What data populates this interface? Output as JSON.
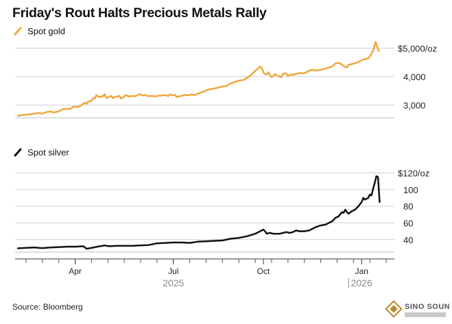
{
  "title": "Friday's Rout Halts Precious Metals Rally",
  "source": "Source: Bloomberg",
  "logo_text": "SINO SOUND",
  "chart_data": [
    {
      "type": "line",
      "name": "gold",
      "legend": "Spot gold",
      "color": "#f0a63c",
      "ylim": [
        2550,
        5200
      ],
      "yticks": [
        {
          "value": 5000,
          "label": "$5,000/oz"
        },
        {
          "value": 4000,
          "label": "4,000"
        },
        {
          "value": 3000,
          "label": "3,000"
        }
      ],
      "points": [
        [
          0,
          2625
        ],
        [
          0.3,
          2650
        ],
        [
          0.6,
          2660
        ],
        [
          0.8,
          2680
        ],
        [
          1.0,
          2700
        ],
        [
          1.3,
          2720
        ],
        [
          1.5,
          2700
        ],
        [
          1.8,
          2760
        ],
        [
          2.0,
          2770
        ],
        [
          2.2,
          2740
        ],
        [
          2.5,
          2780
        ],
        [
          2.8,
          2860
        ],
        [
          3.0,
          2870
        ],
        [
          3.2,
          2860
        ],
        [
          3.4,
          2940
        ],
        [
          3.6,
          2930
        ],
        [
          3.8,
          2960
        ],
        [
          4.0,
          3050
        ],
        [
          4.1,
          3080
        ],
        [
          4.2,
          3040
        ],
        [
          4.3,
          3120
        ],
        [
          4.5,
          3150
        ],
        [
          4.6,
          3240
        ],
        [
          4.7,
          3230
        ],
        [
          4.8,
          3350
        ],
        [
          4.9,
          3300
        ],
        [
          5.0,
          3270
        ],
        [
          5.1,
          3310
        ],
        [
          5.2,
          3300
        ],
        [
          5.3,
          3380
        ],
        [
          5.4,
          3250
        ],
        [
          5.5,
          3270
        ],
        [
          5.7,
          3320
        ],
        [
          5.8,
          3240
        ],
        [
          5.9,
          3280
        ],
        [
          6.0,
          3290
        ],
        [
          6.2,
          3320
        ],
        [
          6.3,
          3230
        ],
        [
          6.4,
          3260
        ],
        [
          6.6,
          3350
        ],
        [
          6.8,
          3300
        ],
        [
          7.0,
          3320
        ],
        [
          7.2,
          3310
        ],
        [
          7.4,
          3380
        ],
        [
          7.6,
          3340
        ],
        [
          7.8,
          3350
        ],
        [
          8.0,
          3310
        ],
        [
          8.2,
          3320
        ],
        [
          8.4,
          3300
        ],
        [
          8.6,
          3330
        ],
        [
          8.8,
          3340
        ],
        [
          9.0,
          3350
        ],
        [
          9.2,
          3320
        ],
        [
          9.3,
          3380
        ],
        [
          9.4,
          3340
        ],
        [
          9.6,
          3360
        ],
        [
          9.7,
          3280
        ],
        [
          9.8,
          3300
        ],
        [
          10.0,
          3320
        ],
        [
          10.2,
          3360
        ],
        [
          10.4,
          3340
        ],
        [
          10.6,
          3370
        ],
        [
          10.8,
          3350
        ],
        [
          11.0,
          3400
        ],
        [
          11.2,
          3440
        ],
        [
          11.4,
          3480
        ],
        [
          11.6,
          3540
        ],
        [
          11.8,
          3560
        ],
        [
          12.0,
          3580
        ],
        [
          12.2,
          3610
        ],
        [
          12.4,
          3640
        ],
        [
          12.6,
          3660
        ],
        [
          12.8,
          3680
        ],
        [
          13.0,
          3760
        ],
        [
          13.2,
          3800
        ],
        [
          13.4,
          3840
        ],
        [
          13.6,
          3870
        ],
        [
          13.8,
          3880
        ],
        [
          14.0,
          3960
        ],
        [
          14.2,
          4030
        ],
        [
          14.4,
          4150
        ],
        [
          14.6,
          4250
        ],
        [
          14.7,
          4300
        ],
        [
          14.8,
          4360
        ],
        [
          14.9,
          4300
        ],
        [
          15.0,
          4150
        ],
        [
          15.1,
          4090
        ],
        [
          15.2,
          4070
        ],
        [
          15.3,
          4150
        ],
        [
          15.4,
          4060
        ],
        [
          15.5,
          3980
        ],
        [
          15.6,
          4010
        ],
        [
          15.7,
          4090
        ],
        [
          15.8,
          4060
        ],
        [
          15.9,
          4020
        ],
        [
          16.0,
          4000
        ],
        [
          16.1,
          3980
        ],
        [
          16.2,
          4090
        ],
        [
          16.3,
          4120
        ],
        [
          16.4,
          4100
        ],
        [
          16.5,
          4020
        ],
        [
          16.6,
          4050
        ],
        [
          16.7,
          4080
        ],
        [
          16.8,
          4060
        ],
        [
          17.0,
          4090
        ],
        [
          17.2,
          4130
        ],
        [
          17.4,
          4110
        ],
        [
          17.6,
          4140
        ],
        [
          17.8,
          4210
        ],
        [
          18.0,
          4240
        ],
        [
          18.2,
          4220
        ],
        [
          18.4,
          4230
        ],
        [
          18.6,
          4250
        ],
        [
          18.8,
          4280
        ],
        [
          19.0,
          4320
        ],
        [
          19.2,
          4360
        ],
        [
          19.4,
          4460
        ],
        [
          19.6,
          4490
        ],
        [
          19.8,
          4420
        ],
        [
          20.0,
          4330
        ],
        [
          20.1,
          4320
        ],
        [
          20.2,
          4410
        ],
        [
          20.4,
          4440
        ],
        [
          20.6,
          4470
        ],
        [
          20.8,
          4510
        ],
        [
          21.0,
          4580
        ],
        [
          21.2,
          4620
        ],
        [
          21.4,
          4640
        ],
        [
          21.6,
          4790
        ],
        [
          21.75,
          5000
        ],
        [
          21.85,
          5220
        ],
        [
          21.95,
          5050
        ],
        [
          22.05,
          4900
        ]
      ]
    },
    {
      "type": "line",
      "name": "silver",
      "legend": "Spot silver",
      "color": "#111111",
      "ylim": [
        25,
        122
      ],
      "yticks": [
        {
          "value": 120,
          "label": "$120/oz"
        },
        {
          "value": 100,
          "label": "100"
        },
        {
          "value": 80,
          "label": "80"
        },
        {
          "value": 60,
          "label": "60"
        },
        {
          "value": 40,
          "label": "40"
        }
      ],
      "points": [
        [
          0,
          29.5
        ],
        [
          0.5,
          30.0
        ],
        [
          1.0,
          30.5
        ],
        [
          1.5,
          29.8
        ],
        [
          2.0,
          30.5
        ],
        [
          2.5,
          31.0
        ],
        [
          3.0,
          31.5
        ],
        [
          3.5,
          31.5
        ],
        [
          4.0,
          32.0
        ],
        [
          4.2,
          29.0
        ],
        [
          4.5,
          30.0
        ],
        [
          5.0,
          32.0
        ],
        [
          5.3,
          33.0
        ],
        [
          5.6,
          32.0
        ],
        [
          6.0,
          32.5
        ],
        [
          6.5,
          32.5
        ],
        [
          7.0,
          32.5
        ],
        [
          7.5,
          33.0
        ],
        [
          8.0,
          33.5
        ],
        [
          8.5,
          35.5
        ],
        [
          9.0,
          36.0
        ],
        [
          9.5,
          36.5
        ],
        [
          10.0,
          36.5
        ],
        [
          10.5,
          36.0
        ],
        [
          11.0,
          37.5
        ],
        [
          11.5,
          38.0
        ],
        [
          12.0,
          38.5
        ],
        [
          12.5,
          39.0
        ],
        [
          13.0,
          41.0
        ],
        [
          13.5,
          42.0
        ],
        [
          14.0,
          44.0
        ],
        [
          14.5,
          47.0
        ],
        [
          14.8,
          50.0
        ],
        [
          15.0,
          52.0
        ],
        [
          15.1,
          50.0
        ],
        [
          15.2,
          47.0
        ],
        [
          15.4,
          48.0
        ],
        [
          15.6,
          47.0
        ],
        [
          16.0,
          47.0
        ],
        [
          16.2,
          48.0
        ],
        [
          16.4,
          49.0
        ],
        [
          16.6,
          48.0
        ],
        [
          16.8,
          49.0
        ],
        [
          17.0,
          51.0
        ],
        [
          17.2,
          50.0
        ],
        [
          17.5,
          50.0
        ],
        [
          17.8,
          51.0
        ],
        [
          18.0,
          53.0
        ],
        [
          18.2,
          55.0
        ],
        [
          18.5,
          57.0
        ],
        [
          18.8,
          58.0
        ],
        [
          19.0,
          60.0
        ],
        [
          19.2,
          62.0
        ],
        [
          19.4,
          66.0
        ],
        [
          19.6,
          68.0
        ],
        [
          19.8,
          73.0
        ],
        [
          19.9,
          72.0
        ],
        [
          20.0,
          76.0
        ],
        [
          20.1,
          73.0
        ],
        [
          20.2,
          71.0
        ],
        [
          20.4,
          74.0
        ],
        [
          20.6,
          76.0
        ],
        [
          20.8,
          80.0
        ],
        [
          21.0,
          85.0
        ],
        [
          21.1,
          90.0
        ],
        [
          21.2,
          88.0
        ],
        [
          21.4,
          90.0
        ],
        [
          21.5,
          94.0
        ],
        [
          21.6,
          93.0
        ],
        [
          21.7,
          101.0
        ],
        [
          21.8,
          108.0
        ],
        [
          21.9,
          116.0
        ],
        [
          22.0,
          115.0
        ],
        [
          22.05,
          100.0
        ],
        [
          22.1,
          85.0
        ]
      ]
    }
  ],
  "x_axis": {
    "range": [
      0,
      23
    ],
    "month_ticks": [
      {
        "value": 3.5,
        "label": "Apr"
      },
      {
        "value": 9.5,
        "label": "Jul"
      },
      {
        "value": 15.0,
        "label": "Oct"
      },
      {
        "value": 21.0,
        "label": "Jan"
      }
    ],
    "year_labels": [
      {
        "value": 9.5,
        "label": "2025"
      },
      {
        "value": 21.0,
        "label": "2026"
      }
    ]
  }
}
